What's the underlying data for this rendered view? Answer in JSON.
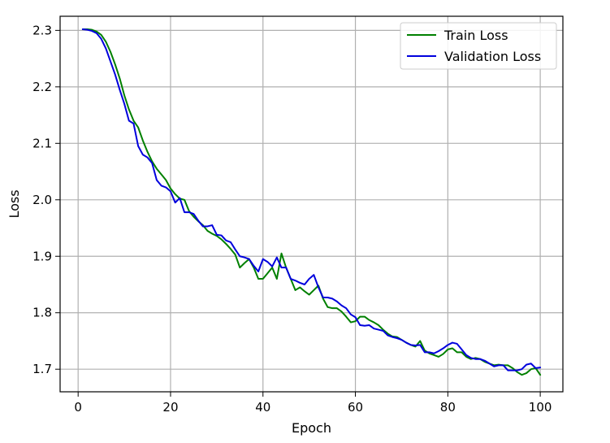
{
  "chart_data": {
    "type": "line",
    "title": "",
    "xlabel": "Epoch",
    "ylabel": "Loss",
    "xlim": [
      -3.9,
      104.9
    ],
    "ylim": [
      1.66,
      2.325
    ],
    "xticks": [
      0,
      20,
      40,
      60,
      80,
      100
    ],
    "yticks": [
      1.7,
      1.8,
      1.9,
      2.0,
      2.1,
      2.2,
      2.3
    ],
    "grid": true,
    "legend": "top-right",
    "series": [
      {
        "name": "Train Loss",
        "color": "#008000",
        "x": [
          1,
          2,
          3,
          4,
          5,
          6,
          7,
          8,
          9,
          10,
          11,
          12,
          13,
          14,
          15,
          16,
          17,
          18,
          19,
          20,
          21,
          22,
          23,
          24,
          25,
          26,
          27,
          28,
          29,
          30,
          31,
          32,
          33,
          34,
          35,
          36,
          37,
          38,
          39,
          40,
          41,
          42,
          43,
          44,
          45,
          46,
          47,
          48,
          49,
          50,
          51,
          52,
          53,
          54,
          55,
          56,
          57,
          58,
          59,
          60,
          61,
          62,
          63,
          64,
          65,
          66,
          67,
          68,
          69,
          70,
          71,
          72,
          73,
          74,
          75,
          76,
          77,
          78,
          79,
          80,
          81,
          82,
          83,
          84,
          85,
          86,
          87,
          88,
          89,
          90,
          91,
          92,
          93,
          94,
          95,
          96,
          97,
          98,
          99,
          100
        ],
        "values": [
          2.302,
          2.302,
          2.301,
          2.298,
          2.292,
          2.28,
          2.262,
          2.24,
          2.215,
          2.185,
          2.16,
          2.14,
          2.128,
          2.105,
          2.085,
          2.068,
          2.055,
          2.045,
          2.035,
          2.02,
          2.01,
          2.002,
          2.0,
          1.98,
          1.97,
          1.962,
          1.955,
          1.945,
          1.94,
          1.936,
          1.93,
          1.922,
          1.913,
          1.903,
          1.88,
          1.888,
          1.895,
          1.88,
          1.86,
          1.86,
          1.87,
          1.88,
          1.86,
          1.905,
          1.88,
          1.86,
          1.84,
          1.845,
          1.838,
          1.832,
          1.84,
          1.848,
          1.825,
          1.81,
          1.808,
          1.808,
          1.802,
          1.793,
          1.783,
          1.785,
          1.793,
          1.793,
          1.787,
          1.783,
          1.778,
          1.77,
          1.763,
          1.758,
          1.757,
          1.752,
          1.747,
          1.743,
          1.74,
          1.75,
          1.733,
          1.728,
          1.725,
          1.722,
          1.727,
          1.735,
          1.737,
          1.73,
          1.73,
          1.722,
          1.718,
          1.72,
          1.718,
          1.713,
          1.71,
          1.707,
          1.708,
          1.707,
          1.707,
          1.702,
          1.695,
          1.69,
          1.693,
          1.7,
          1.702,
          1.69
        ]
      },
      {
        "name": "Validation Loss",
        "color": "#0000dd",
        "x": [
          1,
          2,
          3,
          4,
          5,
          6,
          7,
          8,
          9,
          10,
          11,
          12,
          13,
          14,
          15,
          16,
          17,
          18,
          19,
          20,
          21,
          22,
          23,
          24,
          25,
          26,
          27,
          28,
          29,
          30,
          31,
          32,
          33,
          34,
          35,
          36,
          37,
          38,
          39,
          40,
          41,
          42,
          43,
          44,
          45,
          46,
          47,
          48,
          49,
          50,
          51,
          52,
          53,
          54,
          55,
          56,
          57,
          58,
          59,
          60,
          61,
          62,
          63,
          64,
          65,
          66,
          67,
          68,
          69,
          70,
          71,
          72,
          73,
          74,
          75,
          76,
          77,
          78,
          79,
          80,
          81,
          82,
          83,
          84,
          85,
          86,
          87,
          88,
          89,
          90,
          91,
          92,
          93,
          94,
          95,
          96,
          97,
          98,
          99,
          100
        ],
        "values": [
          2.302,
          2.301,
          2.299,
          2.295,
          2.285,
          2.268,
          2.245,
          2.222,
          2.195,
          2.17,
          2.14,
          2.135,
          2.095,
          2.08,
          2.075,
          2.065,
          2.035,
          2.025,
          2.022,
          2.015,
          1.995,
          2.003,
          1.978,
          1.978,
          1.975,
          1.963,
          1.953,
          1.953,
          1.955,
          1.938,
          1.937,
          1.928,
          1.925,
          1.912,
          1.9,
          1.898,
          1.895,
          1.883,
          1.873,
          1.895,
          1.89,
          1.882,
          1.898,
          1.88,
          1.88,
          1.86,
          1.857,
          1.853,
          1.85,
          1.86,
          1.867,
          1.845,
          1.827,
          1.827,
          1.825,
          1.82,
          1.813,
          1.808,
          1.797,
          1.792,
          1.778,
          1.777,
          1.778,
          1.772,
          1.77,
          1.768,
          1.76,
          1.757,
          1.755,
          1.752,
          1.747,
          1.743,
          1.742,
          1.743,
          1.73,
          1.73,
          1.728,
          1.732,
          1.737,
          1.743,
          1.747,
          1.745,
          1.735,
          1.725,
          1.72,
          1.718,
          1.718,
          1.715,
          1.71,
          1.705,
          1.707,
          1.707,
          1.698,
          1.698,
          1.698,
          1.7,
          1.708,
          1.71,
          1.702,
          1.703
        ]
      }
    ]
  }
}
